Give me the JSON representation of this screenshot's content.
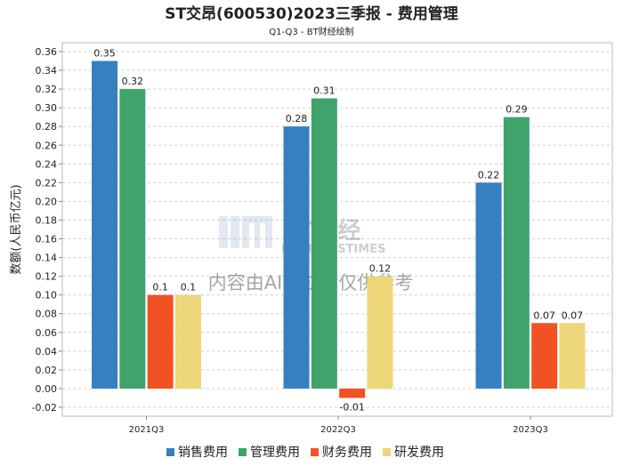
{
  "chart_data": {
    "type": "bar",
    "title": "ST交昂(600530)2023三季报 - 费用管理",
    "subtitle": "Q1-Q3 - BT财经绘制",
    "ylabel": "数额(人民币亿元)",
    "xlabel": "",
    "ylim": [
      -0.02,
      0.36
    ],
    "ytick_step": 0.02,
    "grid": true,
    "legend_position": "bottom",
    "categories": [
      "2021Q3",
      "2022Q3",
      "2023Q3"
    ],
    "series": [
      {
        "name": "销售费用",
        "color": "#3580bf",
        "values": [
          0.35,
          0.28,
          0.22
        ],
        "labels": [
          "0.35",
          "0.28",
          "0.22"
        ]
      },
      {
        "name": "管理费用",
        "color": "#40a36b",
        "values": [
          0.32,
          0.31,
          0.29
        ],
        "labels": [
          "0.32",
          "0.31",
          "0.29"
        ]
      },
      {
        "name": "财务费用",
        "color": "#f05224",
        "values": [
          0.1,
          -0.01,
          0.07
        ],
        "labels": [
          "0.1",
          "-0.01",
          "0.07"
        ]
      },
      {
        "name": "研发费用",
        "color": "#ecd679",
        "values": [
          0.1,
          0.12,
          0.07
        ],
        "labels": [
          "0.1",
          "0.12",
          "0.07"
        ]
      }
    ],
    "watermark": {
      "logo_text": "BT财经",
      "logo_subtext": "BUSINESSTIMES",
      "notice": "内容由AI生成，仅供参考"
    }
  }
}
